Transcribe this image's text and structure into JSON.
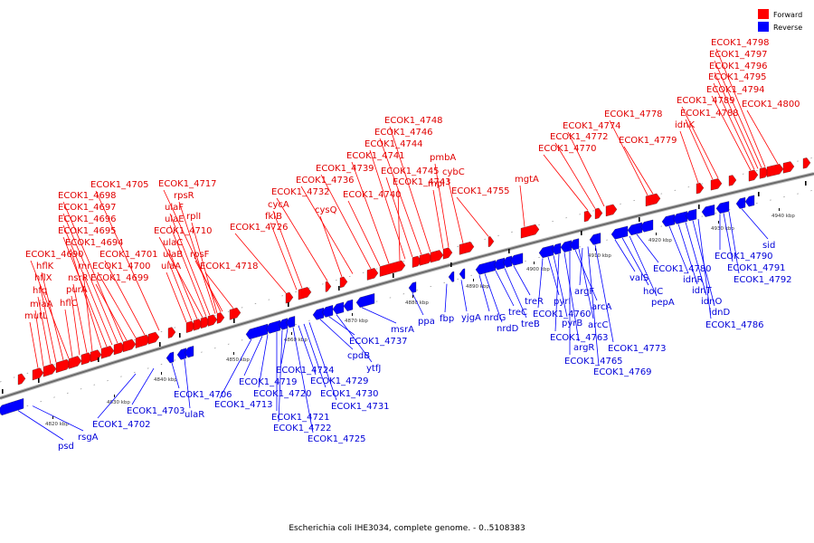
{
  "legend": [
    {
      "label": "Forward",
      "color": "#ff0000"
    },
    {
      "label": "Reverse",
      "color": "#0000ff"
    }
  ],
  "caption": "Escherichia coli IHE3034, complete genome. - 0..5108383",
  "ticks": [
    "4820 kbp",
    "4830 kbp",
    "4840 kbp",
    "4850 kbp",
    "4860 kbp",
    "4870 kbp",
    "4880 kbp",
    "4890 kbp",
    "4900 kbp",
    "4910 kbp",
    "4920 kbp",
    "4930 kbp",
    "4940 kbp"
  ],
  "forward_labels": [
    "mutL",
    "miaA",
    "hfq",
    "hflX",
    "hflK",
    "ECOK1_4690",
    "ECOK1_4694",
    "ECOK1_4695",
    "ECOK1_4696",
    "ECOK1_4697",
    "ECOK1_4698",
    "hflC",
    "purA",
    "nsrR",
    "rnr",
    "ECOK1_4699",
    "ECOK1_4700",
    "ECOK1_4701",
    "ECOK1_4705",
    "ulaA",
    "ulaB",
    "ulaC",
    "ECOK1_4710",
    "ulaE",
    "ulaF",
    "rpsR",
    "ECOK1_4717",
    "rplI",
    "rpsF",
    "ECOK1_4718",
    "ECOK1_4726",
    "fklB",
    "cycA",
    "ECOK1_4732",
    "cysQ",
    "ECOK1_4736",
    "ECOK1_4739",
    "ECOK1_4740",
    "ECOK1_4741",
    "ECOK1_4743",
    "ECOK1_4744",
    "ECOK1_4745",
    "ECOK1_4746",
    "ECOK1_4748",
    "mpl",
    "pmbA",
    "cybC",
    "ECOK1_4755",
    "mgtA",
    "ECOK1_4770",
    "ECOK1_4772",
    "ECOK1_4774",
    "ECOK1_4778",
    "ECOK1_4779",
    "idnK",
    "ECOK1_4788",
    "ECOK1_4789",
    "ECOK1_4794",
    "ECOK1_4795",
    "ECOK1_4796",
    "ECOK1_4797",
    "ECOK1_4798",
    "ECOK1_4800"
  ],
  "reverse_labels": [
    "psd",
    "rsgA",
    "ECOK1_4702",
    "ECOK1_4703",
    "ECOK1_4706",
    "ulaR",
    "ECOK1_4713",
    "ECOK1_4719",
    "ECOK1_4720",
    "ECOK1_4721",
    "ECOK1_4722",
    "ECOK1_4724",
    "ECOK1_4725",
    "ECOK1_4729",
    "ECOK1_4730",
    "ECOK1_4731",
    "cpdB",
    "ECOK1_4737",
    "ytfJ",
    "msrA",
    "ppa",
    "fbp",
    "yjgA",
    "nrdG",
    "nrdD",
    "treC",
    "treB",
    "treR",
    "ECOK1_4760",
    "pyrI",
    "pyrB",
    "ECOK1_4763",
    "argR",
    "ECOK1_4765",
    "arcA",
    "arcC",
    "argF",
    "ECOK1_4769",
    "ECOK1_4773",
    "valS",
    "holC",
    "pepA",
    "ECOK1_4780",
    "idnR",
    "idnT",
    "idnO",
    "idnD",
    "ECOK1_4786",
    "ECOK1_4790",
    "ECOK1_4791",
    "ECOK1_4792",
    "sid"
  ]
}
